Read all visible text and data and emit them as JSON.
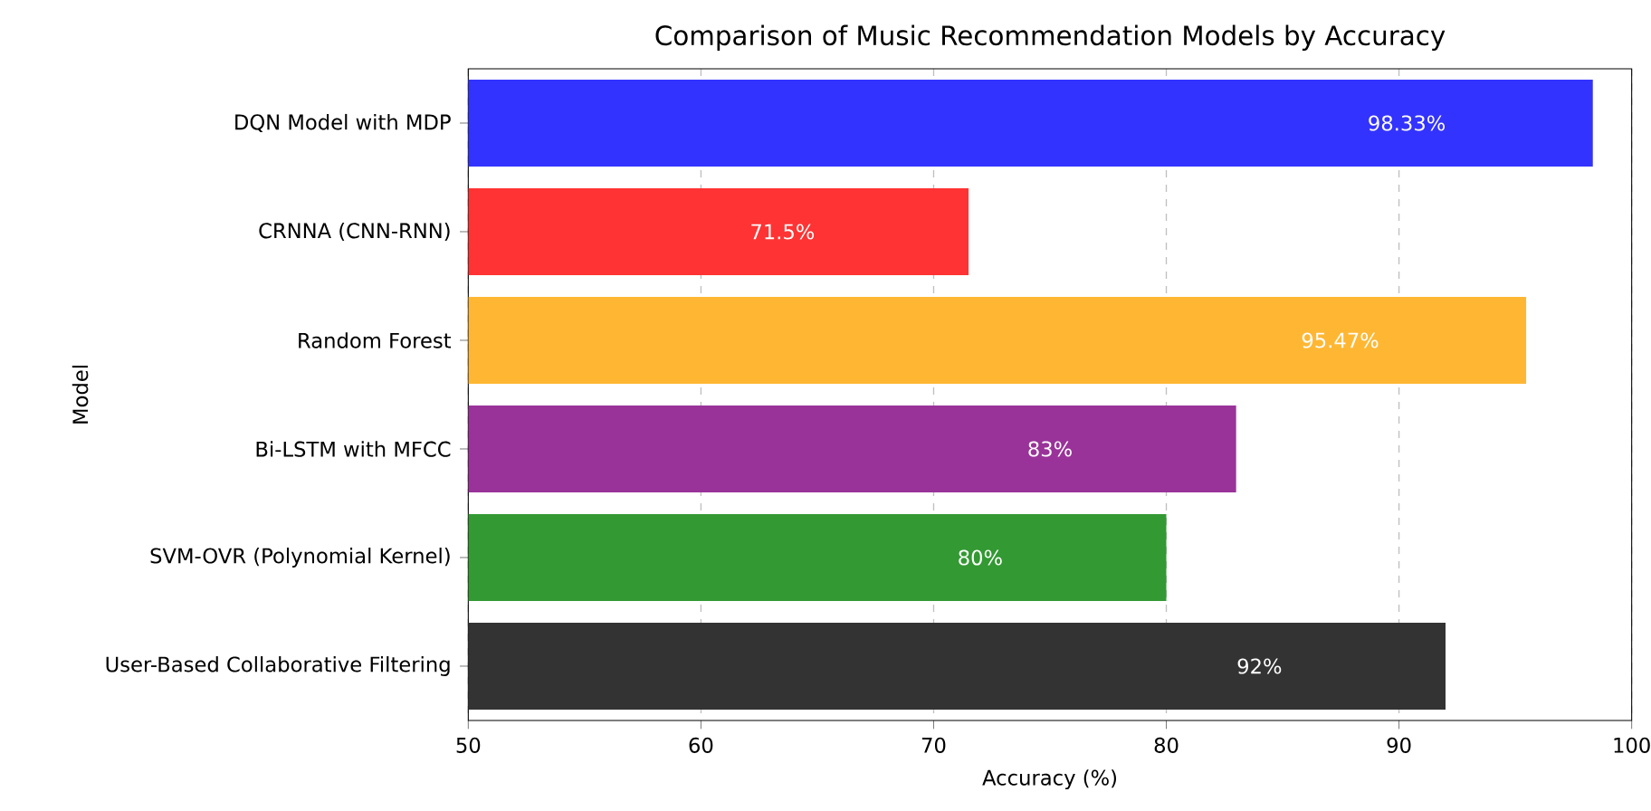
{
  "chart_data": {
    "type": "bar",
    "orientation": "horizontal",
    "title": "Comparison of Music Recommendation Models by Accuracy",
    "xlabel": "Accuracy (%)",
    "ylabel": "Model",
    "categories": [
      "DQN Model with MDP",
      "CRNNA (CNN-RNN)",
      "Random Forest",
      "Bi-LSTM with MFCC",
      "SVM-OVR (Polynomial Kernel)",
      "User-Based Collaborative Filtering"
    ],
    "values": [
      98.33,
      71.5,
      95.47,
      83,
      80,
      92
    ],
    "value_labels": [
      "98.33%",
      "71.5%",
      "95.47%",
      "83%",
      "80%",
      "92%"
    ],
    "colors": [
      "#3333ff",
      "#ff3333",
      "#ffb733",
      "#993399",
      "#339933",
      "#333333"
    ],
    "xlim": [
      50,
      100
    ],
    "xticks": [
      50,
      60,
      70,
      80,
      90,
      100
    ],
    "grid": "x"
  }
}
